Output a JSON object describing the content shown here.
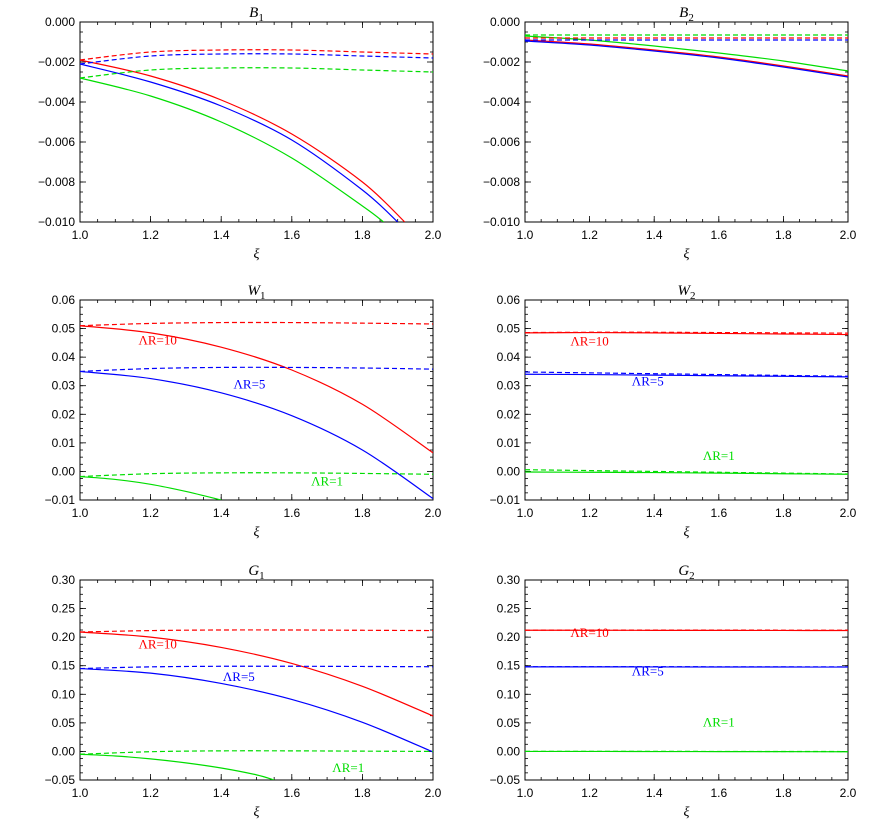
{
  "chart_data": [
    {
      "type": "line",
      "title": "B",
      "title_sub": "1",
      "xlabel": "ξ",
      "xlim": [
        1.0,
        2.0
      ],
      "ylim": [
        -0.01,
        0.0
      ],
      "xticks": [
        "1.0",
        "1.2",
        "1.4",
        "1.6",
        "1.8",
        "2.0"
      ],
      "xtick_values": [
        1.0,
        1.2,
        1.4,
        1.6,
        1.8,
        2.0
      ],
      "yticks": [
        "0.000",
        "−0.002",
        "−0.004",
        "−0.006",
        "−0.008",
        "−0.010"
      ],
      "ytick_values": [
        0.0,
        -0.002,
        -0.004,
        -0.006,
        -0.008,
        -0.01
      ],
      "series": [
        {
          "color": "#ff0000",
          "dash": false,
          "x": [
            1.0,
            1.2,
            1.4,
            1.6,
            1.8,
            1.92
          ],
          "y": [
            -0.0019,
            -0.0027,
            -0.0039,
            -0.0056,
            -0.008,
            -0.01
          ]
        },
        {
          "color": "#0000ff",
          "dash": false,
          "x": [
            1.0,
            1.2,
            1.4,
            1.6,
            1.8,
            1.9
          ],
          "y": [
            -0.0021,
            -0.003,
            -0.0042,
            -0.0059,
            -0.0084,
            -0.01
          ]
        },
        {
          "color": "#00dd00",
          "dash": false,
          "x": [
            1.0,
            1.2,
            1.4,
            1.6,
            1.8,
            1.86
          ],
          "y": [
            -0.0028,
            -0.0037,
            -0.005,
            -0.0068,
            -0.0092,
            -0.01
          ]
        },
        {
          "color": "#ff0000",
          "dash": true,
          "x": [
            1.0,
            1.2,
            1.4,
            1.6,
            1.8,
            2.0
          ],
          "y": [
            -0.0019,
            -0.0015,
            -0.0014,
            -0.0014,
            -0.0015,
            -0.0016
          ]
        },
        {
          "color": "#0000ff",
          "dash": true,
          "x": [
            1.0,
            1.2,
            1.4,
            1.6,
            1.8,
            2.0
          ],
          "y": [
            -0.0021,
            -0.0017,
            -0.0016,
            -0.0016,
            -0.0017,
            -0.0018
          ]
        },
        {
          "color": "#00dd00",
          "dash": true,
          "x": [
            1.0,
            1.2,
            1.4,
            1.6,
            1.8,
            2.0
          ],
          "y": [
            -0.0028,
            -0.0024,
            -0.0023,
            -0.0023,
            -0.0024,
            -0.0025
          ]
        }
      ],
      "annotations": []
    },
    {
      "type": "line",
      "title": "B",
      "title_sub": "2",
      "xlabel": "ξ",
      "xlim": [
        1.0,
        2.0
      ],
      "ylim": [
        -0.01,
        0.0
      ],
      "xticks": [
        "1.0",
        "1.2",
        "1.4",
        "1.6",
        "1.8",
        "2.0"
      ],
      "xtick_values": [
        1.0,
        1.2,
        1.4,
        1.6,
        1.8,
        2.0
      ],
      "yticks": [
        "0.000",
        "−0.002",
        "−0.004",
        "−0.006",
        "−0.008",
        "−0.010"
      ],
      "ytick_values": [
        0.0,
        -0.002,
        -0.004,
        -0.006,
        -0.008,
        -0.01
      ],
      "series": [
        {
          "color": "#ff0000",
          "dash": false,
          "x": [
            1.0,
            1.2,
            1.4,
            1.6,
            1.8,
            2.0
          ],
          "y": [
            -0.0009,
            -0.0011,
            -0.0014,
            -0.00175,
            -0.0022,
            -0.0027
          ]
        },
        {
          "color": "#0000ff",
          "dash": false,
          "x": [
            1.0,
            1.2,
            1.4,
            1.6,
            1.8,
            2.0
          ],
          "y": [
            -0.00095,
            -0.00115,
            -0.00145,
            -0.0018,
            -0.00225,
            -0.00275
          ]
        },
        {
          "color": "#00dd00",
          "dash": false,
          "x": [
            1.0,
            1.2,
            1.4,
            1.6,
            1.8,
            2.0
          ],
          "y": [
            -0.0007,
            -0.0009,
            -0.0012,
            -0.00155,
            -0.00195,
            -0.00245
          ]
        },
        {
          "color": "#ff0000",
          "dash": true,
          "x": [
            1.0,
            1.2,
            1.4,
            1.6,
            1.8,
            2.0
          ],
          "y": [
            -0.0008,
            -0.0008,
            -0.0008,
            -0.0008,
            -0.0008,
            -0.0008
          ]
        },
        {
          "color": "#0000ff",
          "dash": true,
          "x": [
            1.0,
            1.2,
            1.4,
            1.6,
            1.8,
            2.0
          ],
          "y": [
            -0.0009,
            -0.0009,
            -0.0009,
            -0.0009,
            -0.0009,
            -0.0009
          ]
        },
        {
          "color": "#00dd00",
          "dash": true,
          "x": [
            1.0,
            1.2,
            1.4,
            1.6,
            1.8,
            2.0
          ],
          "y": [
            -0.00065,
            -0.00065,
            -0.00065,
            -0.00065,
            -0.00065,
            -0.00065
          ]
        }
      ],
      "annotations": []
    },
    {
      "type": "line",
      "title": "W",
      "title_sub": "1",
      "xlabel": "ξ",
      "xlim": [
        1.0,
        2.0
      ],
      "ylim": [
        -0.01,
        0.06
      ],
      "xticks": [
        "1.0",
        "1.2",
        "1.4",
        "1.6",
        "1.8",
        "2.0"
      ],
      "xtick_values": [
        1.0,
        1.2,
        1.4,
        1.6,
        1.8,
        2.0
      ],
      "yticks": [
        "0.06",
        "0.05",
        "0.04",
        "0.03",
        "0.02",
        "0.01",
        "0.00",
        "−0.01"
      ],
      "ytick_values": [
        0.06,
        0.05,
        0.04,
        0.03,
        0.02,
        0.01,
        0.0,
        -0.01
      ],
      "series": [
        {
          "color": "#ff0000",
          "dash": false,
          "x": [
            1.0,
            1.2,
            1.4,
            1.6,
            1.8,
            2.0
          ],
          "y": [
            0.051,
            0.0485,
            0.0435,
            0.0355,
            0.0235,
            0.0065
          ]
        },
        {
          "color": "#0000ff",
          "dash": false,
          "x": [
            1.0,
            1.2,
            1.4,
            1.6,
            1.8,
            2.0
          ],
          "y": [
            0.035,
            0.0325,
            0.0275,
            0.0195,
            0.0075,
            -0.0095
          ]
        },
        {
          "color": "#00dd00",
          "dash": false,
          "x": [
            1.0,
            1.1,
            1.2,
            1.3,
            1.4
          ],
          "y": [
            -0.0018,
            -0.0028,
            -0.0045,
            -0.007,
            -0.01
          ]
        },
        {
          "color": "#ff0000",
          "dash": true,
          "x": [
            1.0,
            1.2,
            1.4,
            1.6,
            1.8,
            2.0
          ],
          "y": [
            0.051,
            0.0518,
            0.0521,
            0.0521,
            0.0519,
            0.0516
          ]
        },
        {
          "color": "#0000ff",
          "dash": true,
          "x": [
            1.0,
            1.2,
            1.4,
            1.6,
            1.8,
            2.0
          ],
          "y": [
            0.035,
            0.036,
            0.0364,
            0.0364,
            0.0362,
            0.0358
          ]
        },
        {
          "color": "#00dd00",
          "dash": true,
          "x": [
            1.0,
            1.2,
            1.4,
            1.6,
            1.8,
            2.0
          ],
          "y": [
            -0.0018,
            -0.0008,
            -0.0005,
            -0.0005,
            -0.0007,
            -0.001
          ]
        }
      ],
      "annotations": [
        {
          "text": "ΛR=10",
          "color": "#ff0000",
          "x": 1.22,
          "y": 0.0445
        },
        {
          "text": "ΛR=5",
          "color": "#0000ff",
          "x": 1.48,
          "y": 0.029
        },
        {
          "text": "ΛR=1",
          "color": "#00dd00",
          "x": 1.7,
          "y": -0.005
        }
      ]
    },
    {
      "type": "line",
      "title": "W",
      "title_sub": "2",
      "xlabel": "ξ",
      "xlim": [
        1.0,
        2.0
      ],
      "ylim": [
        -0.01,
        0.06
      ],
      "xticks": [
        "1.0",
        "1.2",
        "1.4",
        "1.6",
        "1.8",
        "2.0"
      ],
      "xtick_values": [
        1.0,
        1.2,
        1.4,
        1.6,
        1.8,
        2.0
      ],
      "yticks": [
        "0.06",
        "0.05",
        "0.04",
        "0.03",
        "0.02",
        "0.01",
        "0.00",
        "−0.01"
      ],
      "ytick_values": [
        0.06,
        0.05,
        0.04,
        0.03,
        0.02,
        0.01,
        0.0,
        -0.01
      ],
      "series": [
        {
          "color": "#ff0000",
          "dash": false,
          "x": [
            1.0,
            1.2,
            1.4,
            1.6,
            1.8,
            2.0
          ],
          "y": [
            0.0485,
            0.0486,
            0.0485,
            0.0483,
            0.0481,
            0.0479
          ]
        },
        {
          "color": "#0000ff",
          "dash": false,
          "x": [
            1.0,
            1.2,
            1.4,
            1.6,
            1.8,
            2.0
          ],
          "y": [
            0.034,
            0.0339,
            0.0337,
            0.0335,
            0.0333,
            0.0331
          ]
        },
        {
          "color": "#00dd00",
          "dash": false,
          "x": [
            1.0,
            1.2,
            1.4,
            1.6,
            1.8,
            2.0
          ],
          "y": [
            -0.0002,
            -0.0003,
            -0.0004,
            -0.0006,
            -0.0008,
            -0.001
          ]
        },
        {
          "color": "#ff0000",
          "dash": true,
          "x": [
            1.0,
            1.2,
            1.4,
            1.6,
            1.8,
            2.0
          ],
          "y": [
            0.0486,
            0.0487,
            0.0487,
            0.0486,
            0.0485,
            0.0484
          ]
        },
        {
          "color": "#0000ff",
          "dash": true,
          "x": [
            1.0,
            1.2,
            1.4,
            1.6,
            1.8,
            2.0
          ],
          "y": [
            0.0348,
            0.0345,
            0.0342,
            0.0339,
            0.0336,
            0.0333
          ]
        },
        {
          "color": "#00dd00",
          "dash": true,
          "x": [
            1.0,
            1.2,
            1.4,
            1.6,
            1.8,
            2.0
          ],
          "y": [
            0.0006,
            0.0003,
            0.0,
            -0.0003,
            -0.0006,
            -0.0009
          ]
        }
      ],
      "annotations": [
        {
          "text": "ΛR=10",
          "color": "#ff0000",
          "x": 1.2,
          "y": 0.044
        },
        {
          "text": "ΛR=5",
          "color": "#0000ff",
          "x": 1.38,
          "y": 0.03
        },
        {
          "text": "ΛR=1",
          "color": "#00dd00",
          "x": 1.6,
          "y": 0.004
        }
      ]
    },
    {
      "type": "line",
      "title": "G",
      "title_sub": "1",
      "xlabel": "ξ",
      "xlim": [
        1.0,
        2.0
      ],
      "ylim": [
        -0.05,
        0.3
      ],
      "xticks": [
        "1.0",
        "1.2",
        "1.4",
        "1.6",
        "1.8",
        "2.0"
      ],
      "xtick_values": [
        1.0,
        1.2,
        1.4,
        1.6,
        1.8,
        2.0
      ],
      "yticks": [
        "0.30",
        "0.25",
        "0.20",
        "0.15",
        "0.10",
        "0.05",
        "0.00",
        "−0.05"
      ],
      "ytick_values": [
        0.3,
        0.25,
        0.2,
        0.15,
        0.1,
        0.05,
        0.0,
        -0.05
      ],
      "series": [
        {
          "color": "#ff0000",
          "dash": false,
          "x": [
            1.0,
            1.2,
            1.4,
            1.6,
            1.8,
            2.0
          ],
          "y": [
            0.209,
            0.2,
            0.182,
            0.154,
            0.114,
            0.062
          ]
        },
        {
          "color": "#0000ff",
          "dash": false,
          "x": [
            1.0,
            1.2,
            1.4,
            1.6,
            1.8,
            2.0
          ],
          "y": [
            0.145,
            0.137,
            0.119,
            0.091,
            0.051,
            -0.001
          ]
        },
        {
          "color": "#00dd00",
          "dash": false,
          "x": [
            1.0,
            1.1,
            1.2,
            1.3,
            1.4,
            1.5,
            1.55
          ],
          "y": [
            -0.005,
            -0.008,
            -0.013,
            -0.02,
            -0.029,
            -0.041,
            -0.05
          ]
        },
        {
          "color": "#ff0000",
          "dash": true,
          "x": [
            1.0,
            1.2,
            1.4,
            1.6,
            1.8,
            2.0
          ],
          "y": [
            0.209,
            0.2115,
            0.2125,
            0.2125,
            0.212,
            0.2115
          ]
        },
        {
          "color": "#0000ff",
          "dash": true,
          "x": [
            1.0,
            1.2,
            1.4,
            1.6,
            1.8,
            2.0
          ],
          "y": [
            0.145,
            0.148,
            0.149,
            0.149,
            0.1487,
            0.1482
          ]
        },
        {
          "color": "#00dd00",
          "dash": true,
          "x": [
            1.0,
            1.2,
            1.4,
            1.6,
            1.8,
            2.0
          ],
          "y": [
            -0.005,
            -0.0005,
            0.001,
            0.001,
            0.0005,
            0.0
          ]
        }
      ],
      "annotations": [
        {
          "text": "ΛR=10",
          "color": "#ff0000",
          "x": 1.22,
          "y": 0.18
        },
        {
          "text": "ΛR=5",
          "color": "#0000ff",
          "x": 1.45,
          "y": 0.123
        },
        {
          "text": "ΛR=1",
          "color": "#00dd00",
          "x": 1.76,
          "y": -0.036
        }
      ]
    },
    {
      "type": "line",
      "title": "G",
      "title_sub": "2",
      "xlabel": "ξ",
      "xlim": [
        1.0,
        2.0
      ],
      "ylim": [
        -0.05,
        0.3
      ],
      "xticks": [
        "1.0",
        "1.2",
        "1.4",
        "1.6",
        "1.8",
        "2.0"
      ],
      "xtick_values": [
        1.0,
        1.2,
        1.4,
        1.6,
        1.8,
        2.0
      ],
      "yticks": [
        "0.30",
        "0.25",
        "0.20",
        "0.15",
        "0.10",
        "0.05",
        "0.00",
        "−0.05"
      ],
      "ytick_values": [
        0.3,
        0.25,
        0.2,
        0.15,
        0.1,
        0.05,
        0.0,
        -0.05
      ],
      "series": [
        {
          "color": "#ff0000",
          "dash": false,
          "x": [
            1.0,
            1.2,
            1.4,
            1.6,
            1.8,
            2.0
          ],
          "y": [
            0.212,
            0.212,
            0.2119,
            0.2118,
            0.2117,
            0.2116
          ]
        },
        {
          "color": "#0000ff",
          "dash": false,
          "x": [
            1.0,
            1.2,
            1.4,
            1.6,
            1.8,
            2.0
          ],
          "y": [
            0.148,
            0.148,
            0.1479,
            0.1478,
            0.1477,
            0.1476
          ]
        },
        {
          "color": "#00dd00",
          "dash": false,
          "x": [
            1.0,
            1.2,
            1.4,
            1.6,
            1.8,
            2.0
          ],
          "y": [
            0.0,
            0.0,
            -0.0002,
            -0.0003,
            -0.0004,
            -0.0005
          ]
        },
        {
          "color": "#ff0000",
          "dash": true,
          "x": [
            1.0,
            1.2,
            1.4,
            1.6,
            1.8,
            2.0
          ],
          "y": [
            0.2122,
            0.2123,
            0.2123,
            0.2123,
            0.2122,
            0.2121
          ]
        },
        {
          "color": "#0000ff",
          "dash": true,
          "x": [
            1.0,
            1.2,
            1.4,
            1.6,
            1.8,
            2.0
          ],
          "y": [
            0.1482,
            0.1482,
            0.1482,
            0.1481,
            0.148,
            0.1479
          ]
        },
        {
          "color": "#00dd00",
          "dash": true,
          "x": [
            1.0,
            1.2,
            1.4,
            1.6,
            1.8,
            2.0
          ],
          "y": [
            0.0002,
            0.0002,
            0.0001,
            0.0,
            -0.0001,
            -0.0002
          ]
        }
      ],
      "annotations": [
        {
          "text": "ΛR=10",
          "color": "#ff0000",
          "x": 1.2,
          "y": 0.2
        },
        {
          "text": "ΛR=5",
          "color": "#0000ff",
          "x": 1.38,
          "y": 0.133
        },
        {
          "text": "ΛR=1",
          "color": "#00dd00",
          "x": 1.6,
          "y": 0.044
        }
      ]
    }
  ]
}
